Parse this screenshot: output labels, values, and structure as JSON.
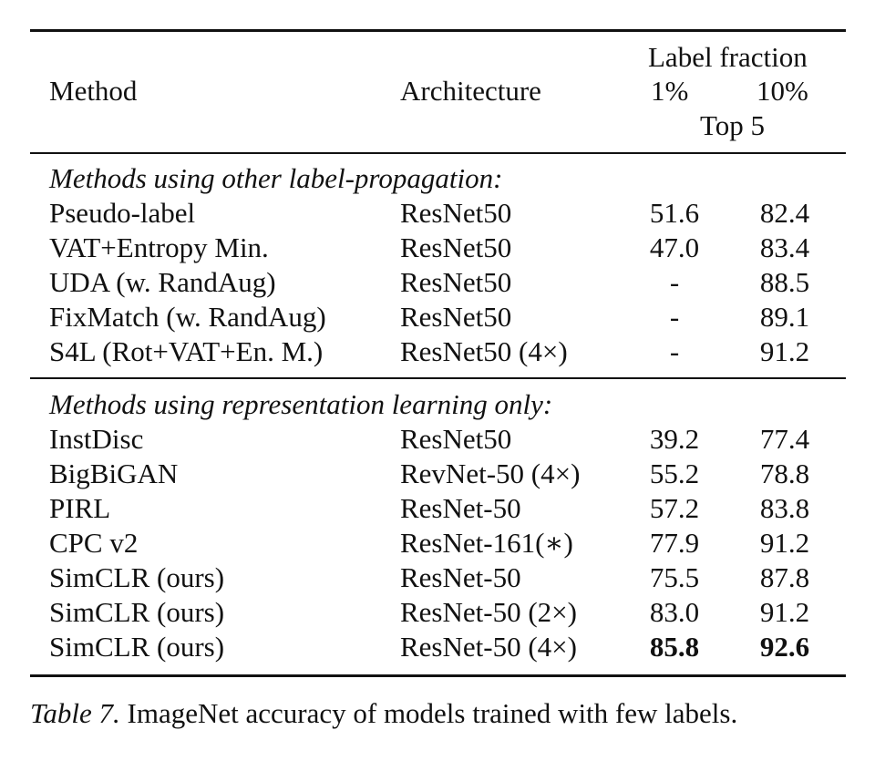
{
  "header": {
    "method": "Method",
    "architecture": "Architecture",
    "label_fraction": "Label fraction",
    "pct_1": "1%",
    "pct_10": "10%",
    "metric": "Top 5"
  },
  "sections": [
    {
      "title": "Methods using other label-propagation:",
      "rows": [
        {
          "method": "Pseudo-label",
          "arch": "ResNet50",
          "p1": "51.6",
          "p10": "82.4"
        },
        {
          "method": "VAT+Entropy Min.",
          "arch": "ResNet50",
          "p1": "47.0",
          "p10": "83.4"
        },
        {
          "method": "UDA (w. RandAug)",
          "arch": "ResNet50",
          "p1": "-",
          "p10": "88.5"
        },
        {
          "method": "FixMatch (w. RandAug)",
          "arch": "ResNet50",
          "p1": "-",
          "p10": "89.1"
        },
        {
          "method": "S4L (Rot+VAT+En. M.)",
          "arch": "ResNet50 (4×)",
          "p1": "-",
          "p10": "91.2"
        }
      ]
    },
    {
      "title": "Methods using representation learning only:",
      "rows": [
        {
          "method": "InstDisc",
          "arch": "ResNet50",
          "p1": "39.2",
          "p10": "77.4"
        },
        {
          "method": "BigBiGAN",
          "arch": "RevNet-50 (4×)",
          "p1": "55.2",
          "p10": "78.8"
        },
        {
          "method": "PIRL",
          "arch": "ResNet-50",
          "p1": "57.2",
          "p10": "83.8"
        },
        {
          "method": "CPC v2",
          "arch": "ResNet-161(∗)",
          "p1": "77.9",
          "p10": "91.2"
        },
        {
          "method": "SimCLR (ours)",
          "arch": "ResNet-50",
          "p1": "75.5",
          "p10": "87.8"
        },
        {
          "method": "SimCLR (ours)",
          "arch": "ResNet-50 (2×)",
          "p1": "83.0",
          "p10": "91.2"
        },
        {
          "method": "SimCLR (ours)",
          "arch": "ResNet-50 (4×)",
          "p1": "85.8",
          "p10": "92.6",
          "bold": true
        }
      ]
    }
  ],
  "caption": {
    "label": "Table 7.",
    "text": " ImageNet accuracy of models trained with few labels."
  }
}
